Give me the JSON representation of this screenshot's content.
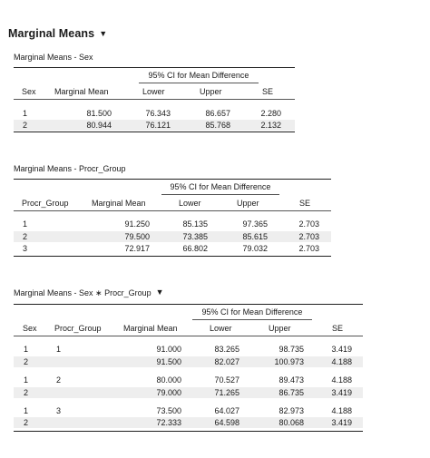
{
  "heading": "Marginal Means",
  "table1": {
    "title": "Marginal Means - Sex",
    "ci_header": "95% CI for Mean Difference",
    "columns": [
      "Sex",
      "Marginal Mean",
      "Lower",
      "Upper",
      "SE"
    ],
    "rows": [
      [
        "1",
        "81.500",
        "76.343",
        "86.657",
        "2.280"
      ],
      [
        "2",
        "80.944",
        "76.121",
        "85.768",
        "2.132"
      ]
    ]
  },
  "table2": {
    "title": "Marginal Means - Procr_Group",
    "ci_header": "95% CI for Mean Difference",
    "columns": [
      "Procr_Group",
      "Marginal Mean",
      "Lower",
      "Upper",
      "SE"
    ],
    "rows": [
      [
        "1",
        "91.250",
        "85.135",
        "97.365",
        "2.703"
      ],
      [
        "2",
        "79.500",
        "73.385",
        "85.615",
        "2.703"
      ],
      [
        "3",
        "72.917",
        "66.802",
        "79.032",
        "2.703"
      ]
    ]
  },
  "table3": {
    "title": "Marginal Means - Sex ∗ Procr_Group",
    "ci_header": "95% CI for Mean Difference",
    "columns": [
      "Sex",
      "Procr_Group",
      "Marginal Mean",
      "Lower",
      "Upper",
      "SE"
    ],
    "rows": [
      [
        "1",
        "1",
        "91.000",
        "83.265",
        "98.735",
        "3.419"
      ],
      [
        "2",
        "",
        "91.500",
        "82.027",
        "100.973",
        "4.188"
      ],
      [
        "1",
        "2",
        "80.000",
        "70.527",
        "89.473",
        "4.188"
      ],
      [
        "2",
        "",
        "79.000",
        "71.265",
        "86.735",
        "3.419"
      ],
      [
        "1",
        "3",
        "73.500",
        "64.027",
        "82.973",
        "4.188"
      ],
      [
        "2",
        "",
        "72.333",
        "64.598",
        "80.068",
        "3.419"
      ]
    ]
  }
}
